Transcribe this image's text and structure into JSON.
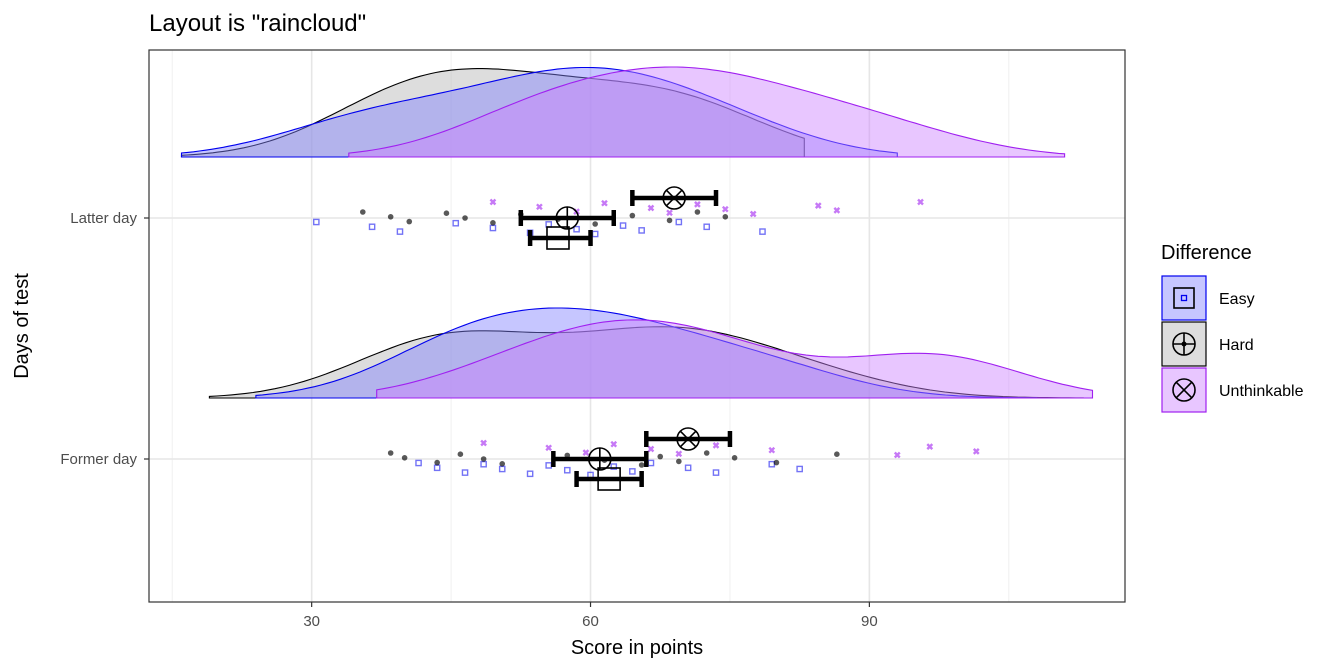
{
  "chart_data": {
    "type": "raincloud",
    "title": "Layout is \"raincloud\"",
    "xlabel": "Score in points",
    "ylabel": "Days of test",
    "xlim": [
      12.5,
      117.5
    ],
    "x_ticks": [
      30,
      60,
      90
    ],
    "grid": true,
    "categories": [
      "Latter day",
      "Former day"
    ],
    "legend": {
      "title": "Difference",
      "placement": "right",
      "entries": [
        "Easy",
        "Hard",
        "Unthinkable"
      ]
    },
    "series": [
      {
        "name": "Easy",
        "color": "#0000ee",
        "fill": "#8080ff",
        "marker": "square",
        "summary": {
          "Latter day": {
            "mean": 56.5,
            "ci": [
              53.5,
              60.0
            ]
          },
          "Former day": {
            "mean": 62.0,
            "ci": [
              58.5,
              65.5
            ]
          }
        },
        "density_range": {
          "Latter day": [
            16,
            93
          ],
          "Former day": [
            24,
            108
          ]
        },
        "points": {
          "Latter day": [
            30.5,
            36.5,
            39.5,
            45.5,
            49.5,
            53.5,
            55.5,
            58.5,
            60.5,
            63.5,
            65.5,
            69.5,
            72.5,
            78.5
          ],
          "Former day": [
            41.5,
            43.5,
            46.5,
            48.5,
            50.5,
            53.5,
            55.5,
            57.5,
            60.0,
            62.5,
            64.5,
            66.5,
            70.5,
            73.5,
            79.5,
            82.5
          ]
        }
      },
      {
        "name": "Hard",
        "color": "#000000",
        "fill": "#b3b3b3",
        "marker": "circle-plus",
        "summary": {
          "Latter day": {
            "mean": 57.5,
            "ci": [
              52.5,
              62.5
            ]
          },
          "Former day": {
            "mean": 61.0,
            "ci": [
              56.0,
              66.0
            ]
          }
        },
        "density_range": {
          "Latter day": [
            16,
            83
          ],
          "Former day": [
            19,
            113
          ]
        },
        "points": {
          "Latter day": [
            35.5,
            38.5,
            40.5,
            44.5,
            46.5,
            49.5,
            52.5,
            56.5,
            60.5,
            64.5,
            68.5,
            71.5,
            74.5
          ],
          "Former day": [
            38.5,
            40.0,
            43.5,
            46.0,
            48.5,
            50.5,
            57.5,
            61.5,
            65.5,
            67.5,
            69.5,
            72.5,
            75.5,
            80.0,
            86.5
          ]
        }
      },
      {
        "name": "Unthinkable",
        "color": "#a020f0",
        "fill": "#cc80ff",
        "marker": "circle-x",
        "summary": {
          "Latter day": {
            "mean": 69.0,
            "ci": [
              64.5,
              73.5
            ]
          },
          "Former day": {
            "mean": 70.5,
            "ci": [
              66.0,
              75.0
            ]
          }
        },
        "density_range": {
          "Latter day": [
            34,
            111
          ],
          "Former day": [
            37,
            114
          ]
        },
        "points": {
          "Latter day": [
            49.5,
            54.5,
            58.5,
            61.5,
            66.5,
            68.5,
            71.5,
            74.5,
            77.5,
            84.5,
            86.5,
            95.5
          ],
          "Former day": [
            48.5,
            55.5,
            59.5,
            62.5,
            66.5,
            69.5,
            73.5,
            79.5,
            93.0,
            96.5,
            101.5
          ]
        }
      }
    ]
  }
}
